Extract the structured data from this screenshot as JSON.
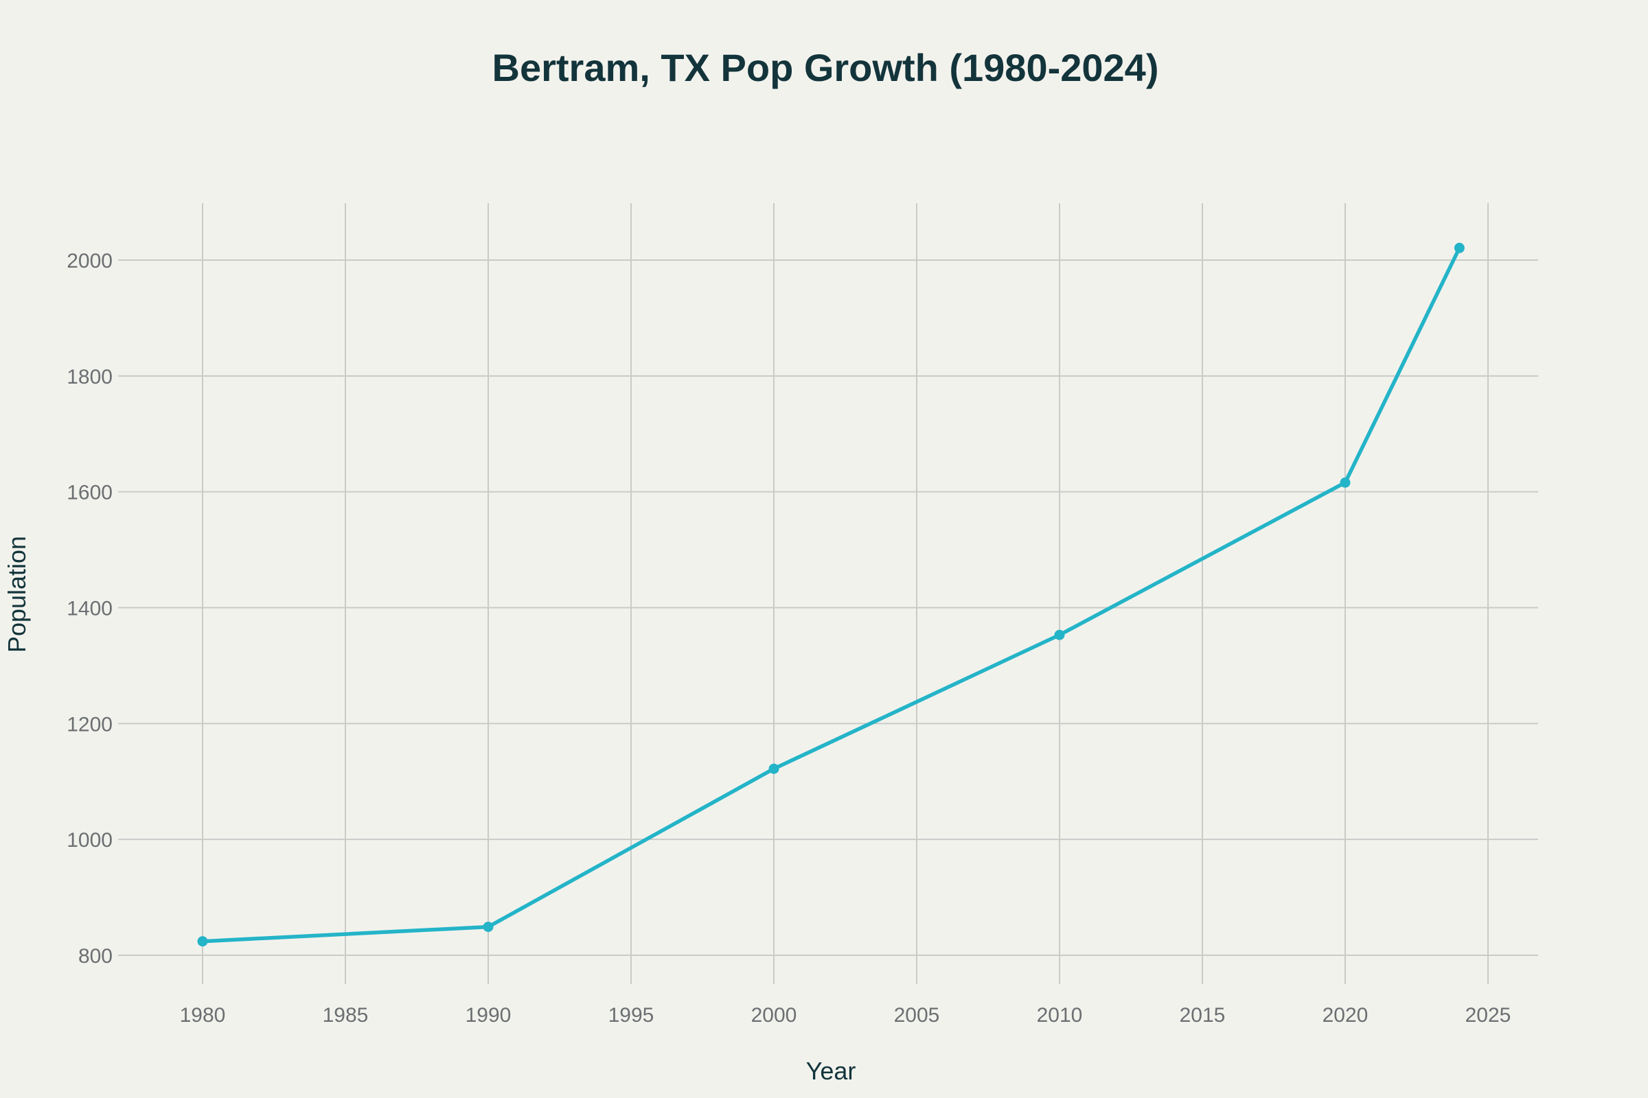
{
  "chart_data": {
    "type": "line",
    "title": "Bertram, TX Pop Growth (1980-2024)",
    "xlabel": "Year",
    "ylabel": "Population",
    "x": [
      1980,
      1990,
      2000,
      2010,
      2020,
      2024
    ],
    "series": [
      {
        "values": [
          824,
          849,
          1122,
          1353,
          1616,
          2021
        ]
      }
    ],
    "xlim": [
      1977,
      2026.5
    ],
    "ylim": [
      740,
      2100
    ],
    "xticks": [
      1980,
      1985,
      1990,
      1995,
      2000,
      2005,
      2010,
      2015,
      2020,
      2025
    ],
    "yticks": [
      800,
      1000,
      1200,
      1400,
      1600,
      1800,
      2000
    ],
    "grid": true,
    "markers": true,
    "colors": {
      "line": "#24b4c8",
      "background": "#f2f2ed",
      "grid": "#c9cbc8",
      "title": "#13343b",
      "tick": "#6b6f71"
    }
  }
}
